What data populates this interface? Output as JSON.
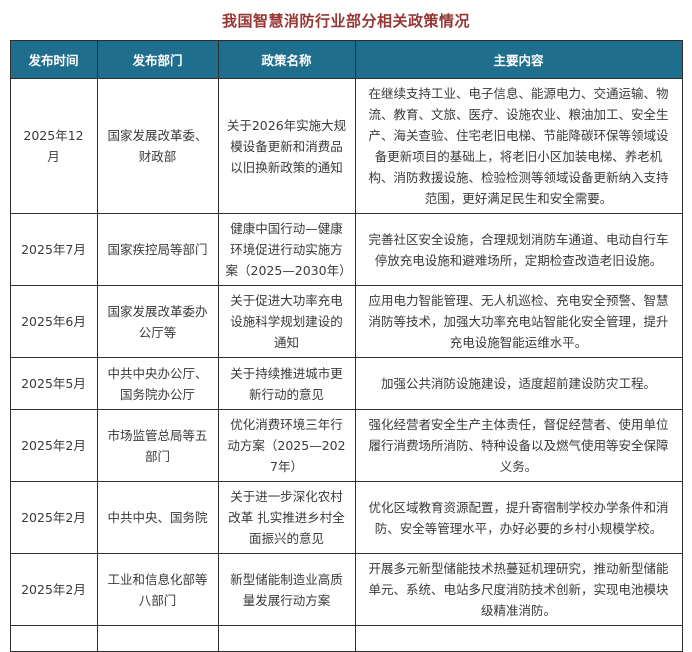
{
  "theme": {
    "title_color": "#963735",
    "header_bg": "#1f6e8e",
    "header_text": "#ffffff",
    "border_color": "#2e2e2e",
    "body_text": "#3a3a3a"
  },
  "page": {
    "title": "我国智慧消防行业部分相关政策情况"
  },
  "table": {
    "columns": [
      "发布时间",
      "发布部门",
      "政策名称",
      "主要内容"
    ],
    "rows": [
      {
        "date": "2025年12月",
        "dept": "国家发展改革委、财政部",
        "policy": "关于2026年实施大规模设备更新和消费品以旧换新政策的通知",
        "content": "在继续支持工业、电子信息、能源电力、交通运输、物流、教育、文旅、医疗、设施农业、粮油加工、安全生产、海关查验、住宅老旧电梯、节能降碳环保等领域设备更新项目的基础上，将老旧小区加装电梯、养老机构、消防救援设施、检验检测等领域设备更新纳入支持范围，更好满足民生和安全需要。"
      },
      {
        "date": "2025年7月",
        "dept": "国家疾控局等部门",
        "policy": "健康中国行动—健康环境促进行动实施方案（2025—2030年）",
        "content": "完善社区安全设施，合理规划消防车通道、电动自行车停放充电设施和避难场所，定期检查改造老旧设施。"
      },
      {
        "date": "2025年6月",
        "dept": "国家发展改革委办公厅等",
        "policy": "关于促进大功率充电设施科学规划建设的通知",
        "content": "应用电力智能管理、无人机巡检、充电安全预警、智慧消防等技术，加强大功率充电站智能化安全管理，提升充电设施智能运维水平。"
      },
      {
        "date": "2025年5月",
        "dept": "中共中央办公厅、国务院办公厅",
        "policy": "关于持续推进城市更新行动的意见",
        "content": "加强公共消防设施建设，适度超前建设防灾工程。"
      },
      {
        "date": "2025年2月",
        "dept": "市场监管总局等五部门",
        "policy": "优化消费环境三年行动方案（2025—2027年）",
        "content": "强化经营者安全生产主体责任，督促经营者、使用单位履行消费场所消防、特种设备以及燃气使用等安全保障义务。"
      },
      {
        "date": "2025年2月",
        "dept": "中共中央、国务院",
        "policy": "关于进一步深化农村改革 扎实推进乡村全面振兴的意见",
        "content": "优化区域教育资源配置，提升寄宿制学校办学条件和消防、安全等管理水平，办好必要的乡村小规模学校。"
      },
      {
        "date": "2025年2月",
        "dept": "工业和信息化部等八部门",
        "policy": "新型储能制造业高质量发展行动方案",
        "content": "开展多元新型储能技术热蔓延机理研究，推动新型储能单元、系统、电站多尺度消防技术创新，实现电池模块级精准消防。"
      }
    ]
  }
}
